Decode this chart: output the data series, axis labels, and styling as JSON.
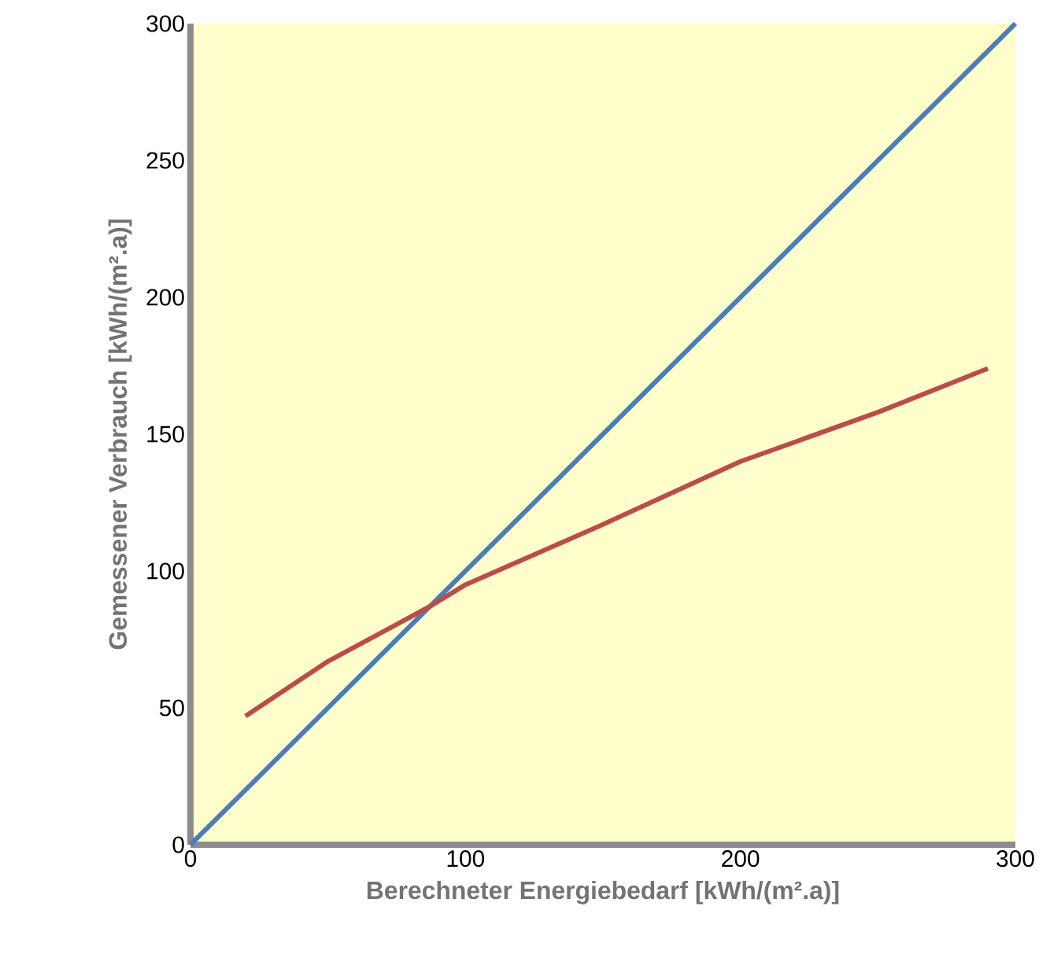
{
  "chart_data": {
    "type": "line",
    "xlabel": "Berechneter Energiebedarf [kWh/(m².a)]",
    "ylabel": "Gemessener Verbrauch [kWh/(m².a)]",
    "xlim": [
      0,
      300
    ],
    "ylim": [
      0,
      300
    ],
    "xticks": [
      0,
      100,
      200,
      300
    ],
    "yticks": [
      0,
      50,
      100,
      150,
      200,
      250,
      300
    ],
    "series": [
      {
        "color": "#4a7ebb",
        "x": [
          0,
          300
        ],
        "values": [
          0,
          300
        ]
      },
      {
        "color": "#be4b48",
        "x": [
          20,
          50,
          87,
          100,
          150,
          200,
          250,
          290
        ],
        "values": [
          47,
          67,
          87,
          95,
          117,
          140,
          158,
          174
        ]
      }
    ]
  }
}
